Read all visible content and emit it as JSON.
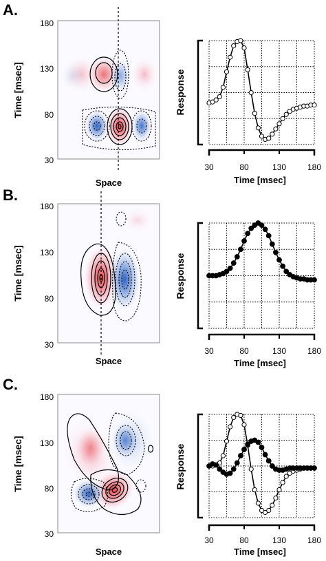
{
  "chart_data": [
    {
      "panel": "A.",
      "heatmap": {
        "type": "heatmap",
        "ylabel": "Time [msec]",
        "xlabel": "Space",
        "yticks": [
          "180",
          "130",
          "80",
          "30"
        ],
        "ylim": [
          30,
          180
        ],
        "dashed_line": "vertical",
        "blobs": [
          {
            "sign": "positive",
            "y": 65,
            "strength": 1.0
          },
          {
            "sign": "negative",
            "y": 108,
            "strength": 0.5
          },
          {
            "sign": "negative",
            "y": 65,
            "strength": 0.6
          },
          {
            "sign": "positive",
            "y": 108,
            "strength": 0.6
          }
        ]
      },
      "response": {
        "type": "line",
        "ylabel": "Response",
        "xlabel": "Time [msec]",
        "xticks": [
          "30",
          "80",
          "130",
          "180"
        ],
        "xlim": [
          30,
          180
        ],
        "grid": true,
        "series": [
          {
            "marker": "open-circle",
            "x": [
              30,
              35,
              40,
              45,
              50,
              55,
              60,
              65,
              70,
              75,
              80,
              85,
              90,
              95,
              100,
              105,
              110,
              115,
              120,
              125,
              130,
              135,
              140,
              145,
              150,
              155,
              160,
              165,
              170,
              175,
              180
            ],
            "y": [
              0.4,
              0.41,
              0.43,
              0.46,
              0.55,
              0.7,
              0.84,
              0.95,
              0.99,
              1.0,
              0.93,
              0.72,
              0.5,
              0.3,
              0.16,
              0.08,
              0.05,
              0.06,
              0.1,
              0.15,
              0.2,
              0.25,
              0.29,
              0.32,
              0.34,
              0.35,
              0.36,
              0.37,
              0.37,
              0.38,
              0.38
            ]
          }
        ]
      }
    },
    {
      "panel": "B.",
      "heatmap": {
        "type": "heatmap",
        "ylabel": "Time [msec]",
        "xlabel": "Space",
        "yticks": [
          "180",
          "130",
          "80",
          "30"
        ],
        "ylim": [
          30,
          180
        ],
        "dashed_line": "vertical",
        "blobs": [
          {
            "sign": "positive",
            "y": 100,
            "strength": 1.0
          },
          {
            "sign": "negative",
            "y": 100,
            "strength": 1.0
          },
          {
            "sign": "negative",
            "y": 165,
            "strength": 0.2
          }
        ]
      },
      "response": {
        "type": "line",
        "ylabel": "Response",
        "xlabel": "Time [msec]",
        "xticks": [
          "30",
          "80",
          "130",
          "180"
        ],
        "xlim": [
          30,
          180
        ],
        "grid": true,
        "series": [
          {
            "marker": "filled-circle",
            "x": [
              30,
              35,
              40,
              45,
              50,
              55,
              60,
              65,
              70,
              75,
              80,
              85,
              90,
              95,
              100,
              105,
              110,
              115,
              120,
              125,
              130,
              135,
              140,
              145,
              150,
              155,
              160,
              165,
              170,
              175,
              180
            ],
            "y": [
              0.5,
              0.5,
              0.5,
              0.51,
              0.52,
              0.54,
              0.57,
              0.62,
              0.68,
              0.75,
              0.83,
              0.9,
              0.95,
              0.98,
              1.0,
              0.98,
              0.94,
              0.88,
              0.8,
              0.72,
              0.65,
              0.59,
              0.54,
              0.51,
              0.49,
              0.48,
              0.47,
              0.47,
              0.46,
              0.46,
              0.46
            ]
          }
        ]
      }
    },
    {
      "panel": "C.",
      "heatmap": {
        "type": "heatmap",
        "ylabel": "Time [msec]",
        "xlabel": "Space",
        "yticks": [
          "180",
          "130",
          "80",
          "30"
        ],
        "ylim": [
          30,
          180
        ],
        "dashed_line": "none",
        "blobs": [
          {
            "sign": "positive",
            "y": 75,
            "strength": 1.0
          },
          {
            "sign": "negative",
            "y": 72,
            "strength": 0.8
          },
          {
            "sign": "negative",
            "y": 118,
            "strength": 0.7
          },
          {
            "sign": "positive",
            "y": 125,
            "strength": 0.5
          },
          {
            "sign": "negative",
            "y": 120,
            "strength": 0.2
          }
        ]
      },
      "response": {
        "type": "line",
        "ylabel": "Response",
        "xlabel": "Time [msec]",
        "xticks": [
          "30",
          "80",
          "130",
          "180"
        ],
        "xlim": [
          30,
          180
        ],
        "grid": true,
        "series": [
          {
            "marker": "open-circle",
            "x": [
              30,
              35,
              40,
              45,
              50,
              55,
              60,
              65,
              70,
              75,
              80,
              85,
              90,
              95,
              100,
              105,
              110,
              115,
              120,
              125,
              130,
              135,
              140,
              145,
              150,
              155,
              160,
              165,
              170,
              175,
              180
            ],
            "y": [
              0.5,
              0.5,
              0.51,
              0.53,
              0.6,
              0.74,
              0.88,
              0.97,
              1.0,
              0.99,
              0.9,
              0.7,
              0.47,
              0.27,
              0.14,
              0.07,
              0.05,
              0.07,
              0.12,
              0.19,
              0.27,
              0.34,
              0.4,
              0.43,
              0.45,
              0.46,
              0.47,
              0.48,
              0.48,
              0.48,
              0.48
            ]
          },
          {
            "marker": "filled-circle",
            "x": [
              30,
              35,
              40,
              45,
              50,
              55,
              60,
              65,
              70,
              75,
              80,
              85,
              90,
              95,
              100,
              105,
              110,
              115,
              120,
              125,
              130,
              135,
              140,
              145,
              150,
              155,
              160,
              165,
              170,
              175,
              180
            ],
            "y": [
              0.5,
              0.52,
              0.51,
              0.47,
              0.44,
              0.42,
              0.43,
              0.47,
              0.53,
              0.6,
              0.66,
              0.71,
              0.74,
              0.75,
              0.73,
              0.68,
              0.61,
              0.55,
              0.5,
              0.47,
              0.46,
              0.46,
              0.47,
              0.48,
              0.48,
              0.48,
              0.48,
              0.48,
              0.48,
              0.48,
              0.48
            ]
          }
        ]
      }
    }
  ]
}
